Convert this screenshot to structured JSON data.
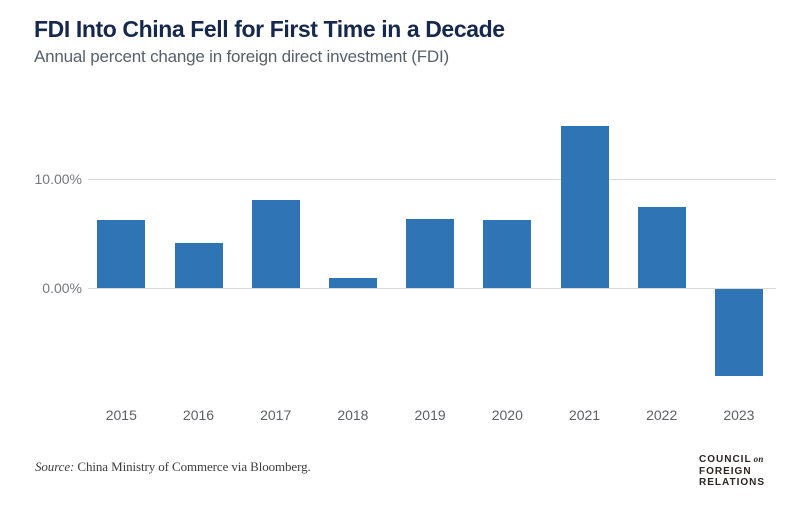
{
  "header": {
    "title": "FDI Into China Fell for First Time in a Decade",
    "subtitle": "Annual percent change in foreign direct investment (FDI)"
  },
  "chart_data": {
    "type": "bar",
    "title": "FDI Into China Fell for First Time in a Decade",
    "subtitle": "Annual percent change in foreign direct investment (FDI)",
    "categories": [
      "2015",
      "2016",
      "2017",
      "2018",
      "2019",
      "2020",
      "2021",
      "2022",
      "2023"
    ],
    "values": [
      6.2,
      4.1,
      8.1,
      0.9,
      6.3,
      6.2,
      14.9,
      7.4,
      -8.0
    ],
    "unit": "percent",
    "y_axis_ticks": [
      {
        "value": 10,
        "label": "10.00%"
      },
      {
        "value": 0,
        "label": "0.00%"
      }
    ],
    "ylim": [
      -8.6,
      15.3
    ],
    "grid": "horizontal-only",
    "legend": "none",
    "bar_color": "#2f75b5"
  },
  "footer": {
    "source_prefix": "Source:",
    "source_text": "China Ministry of Commerce via Bloomberg."
  },
  "logo": {
    "line1": "COUNCIL",
    "line1_connector": "on",
    "line2": "FOREIGN",
    "line3": "RELATIONS"
  },
  "colors": {
    "title": "#16294d",
    "subtitle": "#57606a",
    "axis_label": "#5c6166",
    "tick_label": "#75797d",
    "gridline": "#d9d9d9",
    "bar": "#2f75b5",
    "source": "#3d3d3d",
    "logo": "#2b2522",
    "background": "#ffffff"
  }
}
